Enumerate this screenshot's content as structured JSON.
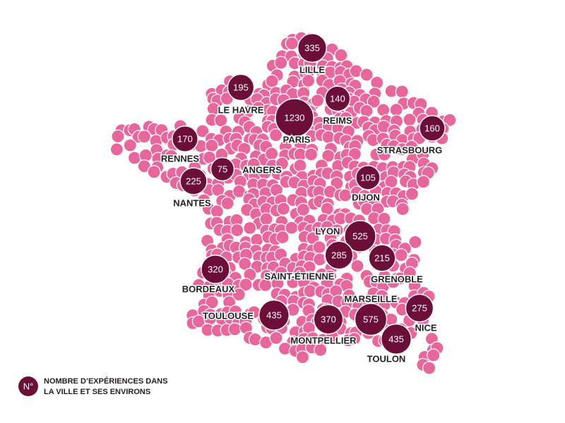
{
  "cities": [
    {
      "label": "LILLE",
      "value": 335
    },
    {
      "label": "LE HAVRE",
      "value": 195
    },
    {
      "label": "REIMS",
      "value": 140
    },
    {
      "label": "PARIS",
      "value": 1230
    },
    {
      "label": "STRASBOURG",
      "value": 160
    },
    {
      "label": "RENNES",
      "value": 170
    },
    {
      "label": "ANGERS",
      "value": 75
    },
    {
      "label": "NANTES",
      "value": 225
    },
    {
      "label": "DIJON",
      "value": 105
    },
    {
      "label": "LYON",
      "value": 525
    },
    {
      "label": "SAINT-ÉTIENNE",
      "value": 285
    },
    {
      "label": "GRENOBLE",
      "value": 215
    },
    {
      "label": "BORDEAUX",
      "value": 320
    },
    {
      "label": "TOULOUSE",
      "value": 435
    },
    {
      "label": "MARSEILLE",
      "value": 575
    },
    {
      "label": "NICE",
      "value": 275
    },
    {
      "label": "MONTPELLIER",
      "value": 370
    },
    {
      "label": "TOULON",
      "value": 435
    }
  ],
  "legend": {
    "symbol": "N°",
    "lines": [
      "NOMBRE D’EXPÉRIENCES DANS",
      "LA VILLE ET SES ENVIRONS"
    ]
  }
}
